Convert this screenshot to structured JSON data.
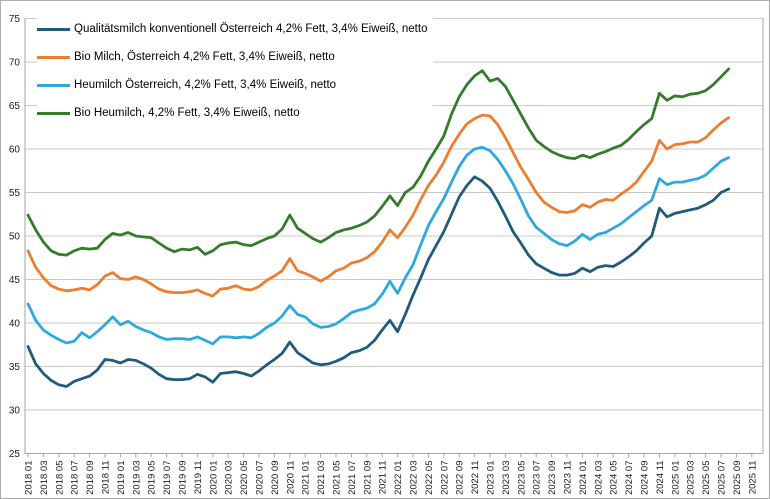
{
  "chart_data": {
    "type": "line",
    "title": "",
    "xlabel": "",
    "ylabel": "",
    "legend_position": "top-left",
    "grid": true,
    "y_axis": {
      "min": 25,
      "max": 75,
      "step": 5,
      "tick_labels": [
        "25",
        "30",
        "35",
        "40",
        "45",
        "50",
        "55",
        "60",
        "65",
        "70",
        "75"
      ]
    },
    "x_axis": {
      "months_per_tick": 2,
      "first_data_month": "2018 01",
      "last_data_month": "2025 08",
      "tick_labels": [
        "2018 01",
        "2018 03",
        "2018 05",
        "2018 07",
        "2018 09",
        "2018 11",
        "2019 01",
        "2019 03",
        "2019 05",
        "2019 07",
        "2019 09",
        "2019 11",
        "2020 01",
        "2020 03",
        "2020 05",
        "2020 07",
        "2020 09",
        "2020 11",
        "2021 01",
        "2021 03",
        "2021 05",
        "2021 07",
        "2021 09",
        "2021 11",
        "2022 01",
        "2022 03",
        "2022 05",
        "2022 07",
        "2022 09",
        "2022 11",
        "2023 01",
        "2023 03",
        "2023 05",
        "2023 07",
        "2023 09",
        "2023 11",
        "2024 01",
        "2024 03",
        "2024 05",
        "2024 07",
        "2024 09",
        "2024 11",
        "2025 01",
        "2025 03",
        "2025 05",
        "2025 07",
        "2025 09",
        "2025 11"
      ]
    },
    "series": [
      {
        "name": "Qualitätsmilch konventionell Österreich 4,2% Fett, 3,4% Eiweiß, netto",
        "color": "#1F5C7A",
        "values": [
          37.3,
          35.3,
          34.2,
          33.4,
          32.9,
          32.7,
          33.3,
          33.6,
          33.9,
          34.6,
          35.8,
          35.7,
          35.4,
          35.8,
          35.7,
          35.3,
          34.8,
          34.1,
          33.6,
          33.5,
          33.5,
          33.6,
          34.1,
          33.8,
          33.2,
          34.2,
          34.3,
          34.4,
          34.2,
          33.9,
          34.5,
          35.2,
          35.8,
          36.5,
          37.8,
          36.6,
          36.0,
          35.4,
          35.2,
          35.3,
          35.6,
          36.0,
          36.6,
          36.8,
          37.2,
          38.0,
          39.2,
          40.3,
          39.0,
          41.0,
          43.2,
          45.2,
          47.3,
          48.9,
          50.5,
          52.5,
          54.5,
          55.8,
          56.8,
          56.3,
          55.5,
          54.0,
          52.3,
          50.5,
          49.2,
          47.8,
          46.8,
          46.3,
          45.8,
          45.5,
          45.5,
          45.7,
          46.3,
          45.9,
          46.4,
          46.6,
          46.5,
          47.0,
          47.6,
          48.3,
          49.2,
          50.0,
          53.2,
          52.2,
          52.6,
          52.8,
          53.0,
          53.2,
          53.6,
          54.1,
          55.0,
          55.4
        ]
      },
      {
        "name": "Bio Milch, Österreich 4,2% Fett, 3,4% Eiweiß, netto",
        "color": "#ED7D31",
        "values": [
          48.3,
          46.4,
          45.2,
          44.3,
          43.9,
          43.7,
          43.8,
          44.0,
          43.8,
          44.4,
          45.4,
          45.8,
          45.1,
          45.0,
          45.3,
          45.0,
          44.5,
          43.9,
          43.6,
          43.5,
          43.5,
          43.6,
          43.8,
          43.4,
          43.1,
          43.9,
          44.0,
          44.3,
          43.9,
          43.8,
          44.2,
          44.9,
          45.4,
          46.0,
          47.4,
          46.0,
          45.7,
          45.3,
          44.8,
          45.3,
          46.0,
          46.3,
          46.9,
          47.1,
          47.5,
          48.2,
          49.3,
          50.7,
          49.8,
          51.0,
          52.4,
          54.2,
          55.8,
          57.0,
          58.5,
          60.3,
          61.7,
          62.9,
          63.5,
          63.9,
          63.8,
          62.8,
          61.3,
          59.6,
          57.9,
          56.5,
          55.0,
          53.9,
          53.3,
          52.8,
          52.7,
          52.9,
          53.6,
          53.3,
          53.9,
          54.2,
          54.1,
          54.8,
          55.4,
          56.2,
          57.4,
          58.6,
          61.0,
          60.0,
          60.5,
          60.6,
          60.8,
          60.8,
          61.3,
          62.2,
          63.0,
          63.6
        ]
      },
      {
        "name": "Heumilch  Österreich, 4,2% Fett, 3,4% Eiweiß, netto",
        "color": "#2EA9DF",
        "values": [
          42.2,
          40.3,
          39.2,
          38.6,
          38.1,
          37.7,
          37.9,
          38.9,
          38.3,
          39.0,
          39.8,
          40.7,
          39.8,
          40.2,
          39.6,
          39.2,
          38.9,
          38.4,
          38.1,
          38.2,
          38.2,
          38.1,
          38.4,
          38.0,
          37.6,
          38.4,
          38.4,
          38.3,
          38.4,
          38.3,
          38.8,
          39.5,
          40.0,
          40.8,
          42.0,
          41.0,
          40.7,
          39.9,
          39.5,
          39.6,
          39.9,
          40.5,
          41.2,
          41.5,
          41.7,
          42.2,
          43.3,
          44.8,
          43.4,
          45.2,
          46.7,
          49.0,
          51.2,
          52.8,
          54.3,
          56.2,
          58.0,
          59.3,
          60.0,
          60.2,
          59.8,
          58.8,
          57.5,
          56.0,
          54.2,
          52.3,
          51.0,
          50.3,
          49.6,
          49.1,
          48.9,
          49.4,
          50.2,
          49.6,
          50.2,
          50.4,
          50.9,
          51.4,
          52.1,
          52.8,
          53.5,
          54.1,
          56.6,
          55.9,
          56.2,
          56.2,
          56.4,
          56.6,
          57.0,
          57.8,
          58.6,
          59.0
        ]
      },
      {
        "name": "Bio Heumilch, 4,2% Fett, 3,4% Eiweiß, netto",
        "color": "#347C2C",
        "values": [
          52.4,
          50.7,
          49.3,
          48.3,
          47.9,
          47.8,
          48.3,
          48.6,
          48.5,
          48.6,
          49.6,
          50.3,
          50.1,
          50.4,
          50.0,
          49.9,
          49.8,
          49.2,
          48.6,
          48.2,
          48.5,
          48.4,
          48.7,
          47.9,
          48.3,
          49.0,
          49.2,
          49.3,
          49.0,
          48.9,
          49.3,
          49.7,
          50.0,
          50.8,
          52.4,
          50.9,
          50.3,
          49.7,
          49.3,
          49.8,
          50.4,
          50.7,
          50.9,
          51.2,
          51.6,
          52.3,
          53.4,
          54.6,
          53.5,
          55.0,
          55.6,
          56.9,
          58.6,
          60.0,
          61.5,
          64.0,
          66.0,
          67.4,
          68.4,
          69.0,
          67.8,
          68.1,
          67.2,
          65.6,
          64.0,
          62.4,
          61.0,
          60.3,
          59.7,
          59.3,
          59.0,
          58.9,
          59.3,
          59.0,
          59.4,
          59.7,
          60.1,
          60.4,
          61.1,
          62.0,
          62.8,
          63.5,
          66.4,
          65.6,
          66.1,
          66.0,
          66.3,
          66.4,
          66.7,
          67.4,
          68.3,
          69.2
        ]
      }
    ],
    "colors": {
      "gridline": "#C9C9C9",
      "axis": "#A6A6A6",
      "border": "#ABABAB",
      "text": "#1A1A1A"
    }
  }
}
